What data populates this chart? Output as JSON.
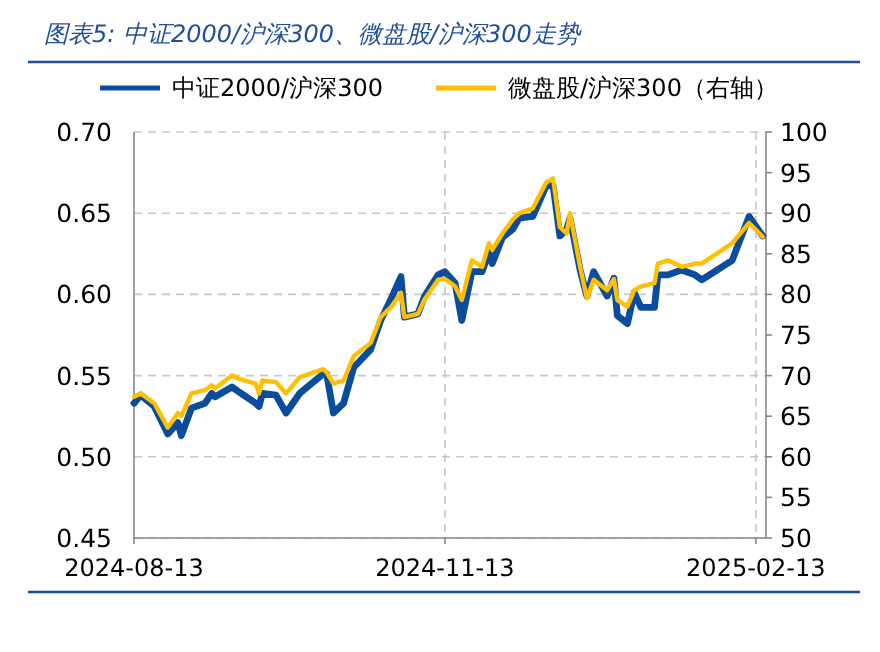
{
  "chart_data": {
    "type": "line",
    "title": "图表5: 中证2000/沪深300、微盘股/沪深300走势",
    "x": [
      "2024-08-13",
      "2024-08-15",
      "2024-08-19",
      "2024-08-23",
      "2024-08-26",
      "2024-08-27",
      "2024-08-30",
      "2024-09-03",
      "2024-09-05",
      "2024-09-06",
      "2024-09-11",
      "2024-09-13",
      "2024-09-18",
      "2024-09-19",
      "2024-09-20",
      "2024-09-24",
      "2024-09-27",
      "2024-10-01",
      "2024-10-08",
      "2024-10-09",
      "2024-10-11",
      "2024-10-14",
      "2024-10-17",
      "2024-10-22",
      "2024-10-25",
      "2024-10-28",
      "2024-10-31",
      "2024-11-01",
      "2024-11-05",
      "2024-11-07",
      "2024-11-11",
      "2024-11-13",
      "2024-11-16",
      "2024-11-18",
      "2024-11-21",
      "2024-11-24",
      "2024-11-26",
      "2024-11-27",
      "2024-11-30",
      "2024-12-03",
      "2024-12-05",
      "2024-12-09",
      "2024-12-13",
      "2024-12-15",
      "2024-12-17",
      "2024-12-19",
      "2024-12-20",
      "2024-12-23",
      "2024-12-25",
      "2024-12-27",
      "2024-12-31",
      "2025-01-02",
      "2025-01-03",
      "2025-01-06",
      "2025-01-08",
      "2025-01-10",
      "2025-01-14",
      "2025-01-15",
      "2025-01-18",
      "2025-01-22",
      "2025-01-26",
      "2025-01-28",
      "2025-02-06",
      "2025-02-11",
      "2025-02-15"
    ],
    "series": [
      {
        "name": "中证2000/沪深300",
        "color": "#0b4d9c",
        "values": [
          0.533,
          0.538,
          0.531,
          0.514,
          0.521,
          0.513,
          0.53,
          0.533,
          0.539,
          0.537,
          0.543,
          0.54,
          0.533,
          0.531,
          0.539,
          0.538,
          0.527,
          0.539,
          0.551,
          0.551,
          0.527,
          0.533,
          0.555,
          0.566,
          0.584,
          0.597,
          0.611,
          0.586,
          0.588,
          0.599,
          0.612,
          0.614,
          0.607,
          0.584,
          0.614,
          0.614,
          0.626,
          0.619,
          0.635,
          0.64,
          0.647,
          0.648,
          0.667,
          0.667,
          0.636,
          0.64,
          0.647,
          0.615,
          0.599,
          0.614,
          0.599,
          0.61,
          0.587,
          0.582,
          0.601,
          0.592,
          0.592,
          0.612,
          0.612,
          0.615,
          0.612,
          0.609,
          0.621,
          0.648,
          0.636
        ]
      },
      {
        "name": "微盘股/沪深300（右轴）",
        "color": "#ffc000",
        "axis": "y2",
        "values": [
          67.4,
          67.8,
          66.6,
          63.6,
          65.4,
          65.0,
          67.8,
          68.2,
          68.8,
          68.4,
          70.0,
          69.6,
          69.0,
          67.8,
          69.4,
          69.2,
          67.8,
          69.8,
          70.8,
          70.4,
          69.0,
          69.4,
          72.4,
          74.0,
          77.2,
          78.4,
          80.2,
          77.2,
          77.6,
          79.4,
          81.8,
          81.9,
          81.0,
          79.3,
          84.2,
          83.4,
          86.3,
          85.5,
          87.5,
          89.2,
          90.0,
          90.6,
          93.8,
          94.3,
          88.3,
          87.5,
          90.0,
          83.4,
          79.5,
          81.8,
          80.5,
          81.9,
          79.3,
          78.5,
          80.5,
          81.0,
          81.4,
          83.8,
          84.2,
          83.4,
          83.8,
          83.8,
          86.3,
          88.8,
          87.1
        ]
      }
    ],
    "xlim": [
      "2024-08-13",
      "2025-02-16"
    ],
    "xticks": [
      "2024-08-13",
      "2024-11-13",
      "2025-02-13"
    ],
    "ylim": [
      0.45,
      0.7
    ],
    "yticks": [
      {
        "value": 0.45,
        "label": "0.45"
      },
      {
        "value": 0.5,
        "label": "0.50"
      },
      {
        "value": 0.55,
        "label": "0.55"
      },
      {
        "value": 0.6,
        "label": "0.60"
      },
      {
        "value": 0.65,
        "label": "0.65"
      },
      {
        "value": 0.7,
        "label": "0.70"
      }
    ],
    "y2lim": [
      50,
      100
    ],
    "y2ticks": [
      50,
      55,
      60,
      65,
      70,
      75,
      80,
      85,
      90,
      95,
      100
    ],
    "grid": true,
    "legend": "top",
    "marker": "none",
    "line_style": "solid"
  }
}
